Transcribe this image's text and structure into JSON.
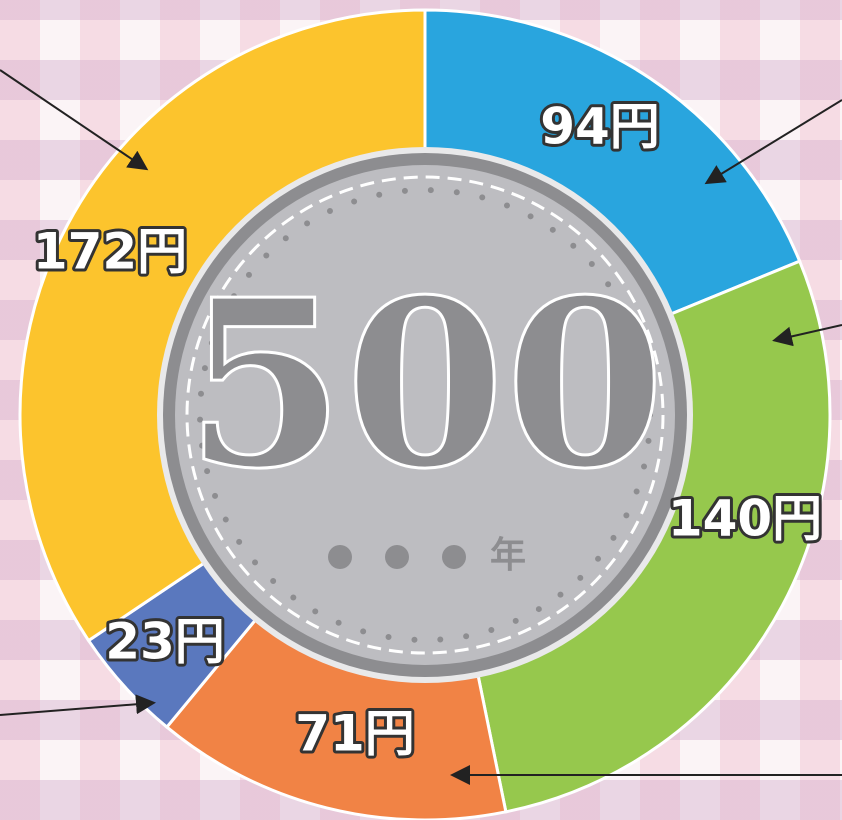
{
  "chart_data": {
    "type": "donut",
    "values": [
      94,
      140,
      71,
      23,
      172
    ],
    "value_labels": [
      "94円",
      "140円",
      "71円",
      "23円",
      "172円"
    ],
    "colors": [
      "#29a5de",
      "#96c84d",
      "#f18345",
      "#5a78be",
      "#fcc42d"
    ],
    "center_label": "500",
    "center_suffix": "年"
  }
}
